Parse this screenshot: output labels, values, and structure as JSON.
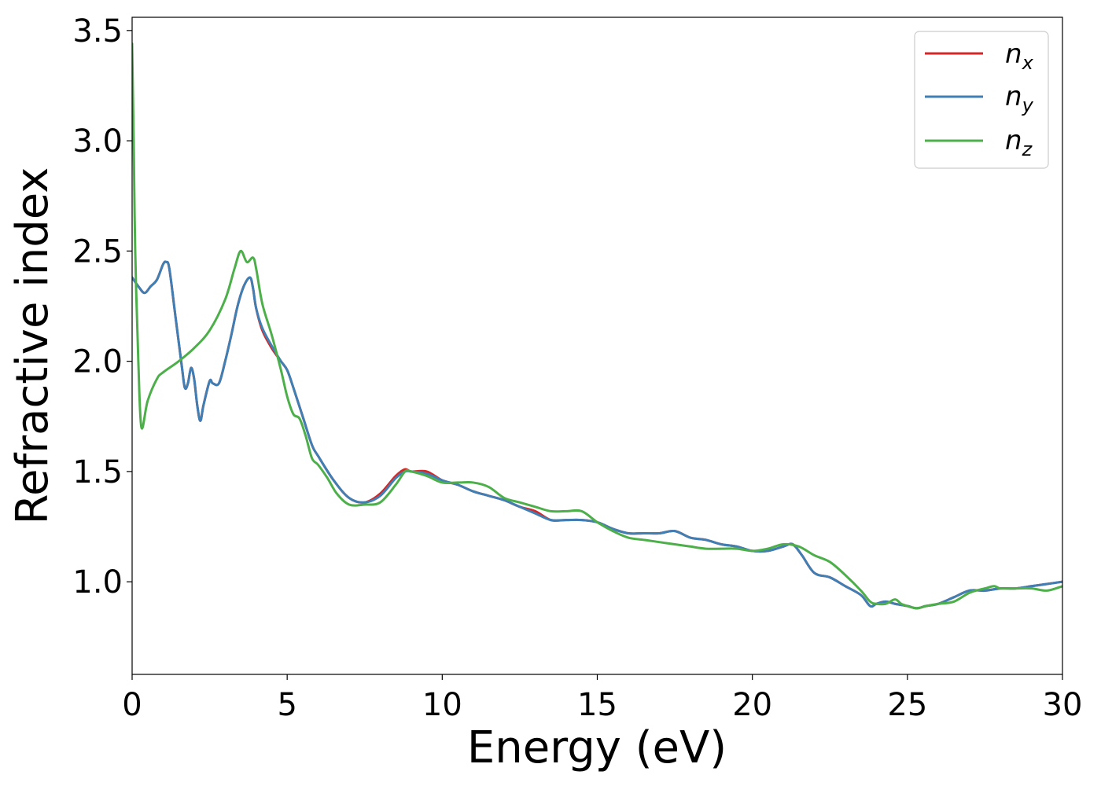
{
  "chart_data": {
    "type": "line",
    "title": "",
    "xlabel": "Energy (eV)",
    "ylabel": "Refractive index",
    "xlim": [
      0,
      30
    ],
    "ylim": [
      0.58,
      3.56
    ],
    "xticks": [
      0,
      5,
      10,
      15,
      20,
      25,
      30
    ],
    "xtick_labels": [
      "0",
      "5",
      "10",
      "15",
      "20",
      "25",
      "30"
    ],
    "yticks": [
      1.0,
      1.5,
      2.0,
      2.5,
      3.0,
      3.5
    ],
    "ytick_labels": [
      "1.0",
      "1.5",
      "2.0",
      "2.5",
      "3.0",
      "3.5"
    ],
    "grid": false,
    "legend_position": "top-right",
    "series": [
      {
        "name": "n_x",
        "label_main": "n",
        "label_sub": "x",
        "color": "#d62728",
        "x": [
          0,
          0.2,
          0.4,
          0.6,
          0.8,
          1.0,
          1.1,
          1.2,
          1.4,
          1.6,
          1.7,
          1.8,
          1.9,
          2.0,
          2.1,
          2.2,
          2.3,
          2.5,
          2.6,
          2.8,
          3.0,
          3.2,
          3.4,
          3.6,
          3.8,
          3.9,
          4.0,
          4.2,
          4.5,
          4.8,
          5.0,
          5.2,
          5.5,
          5.8,
          6.0,
          6.5,
          7.0,
          7.5,
          8.0,
          8.5,
          8.8,
          9.0,
          9.5,
          10.0,
          10.5,
          11.0,
          11.5,
          12.0,
          12.5,
          13.0,
          13.5,
          14.0,
          14.5,
          15.0,
          15.5,
          16.0,
          16.5,
          17.0,
          17.5,
          18.0,
          18.5,
          19.0,
          19.5,
          20.0,
          20.5,
          21.0,
          21.3,
          21.6,
          22.0,
          22.5,
          23.0,
          23.5,
          23.8,
          24.0,
          24.3,
          24.6,
          25.0,
          25.3,
          25.6,
          26.0,
          26.5,
          27.0,
          27.5,
          28.0,
          28.5,
          29.0,
          29.5,
          30.0
        ],
        "y": [
          2.38,
          2.34,
          2.31,
          2.34,
          2.37,
          2.44,
          2.45,
          2.42,
          2.2,
          1.98,
          1.88,
          1.9,
          1.97,
          1.92,
          1.8,
          1.73,
          1.8,
          1.91,
          1.9,
          1.9,
          2.0,
          2.12,
          2.25,
          2.34,
          2.38,
          2.33,
          2.24,
          2.14,
          2.06,
          2.0,
          1.96,
          1.88,
          1.75,
          1.62,
          1.57,
          1.46,
          1.38,
          1.36,
          1.4,
          1.48,
          1.51,
          1.5,
          1.5,
          1.46,
          1.44,
          1.41,
          1.39,
          1.37,
          1.34,
          1.32,
          1.28,
          1.28,
          1.28,
          1.27,
          1.24,
          1.22,
          1.22,
          1.22,
          1.23,
          1.2,
          1.19,
          1.17,
          1.16,
          1.14,
          1.14,
          1.16,
          1.17,
          1.12,
          1.04,
          1.02,
          0.98,
          0.94,
          0.89,
          0.9,
          0.91,
          0.9,
          0.89,
          0.88,
          0.89,
          0.9,
          0.93,
          0.96,
          0.96,
          0.97,
          0.97,
          0.98,
          0.99,
          1.0
        ]
      },
      {
        "name": "n_y",
        "label_main": "n",
        "label_sub": "y",
        "color": "#3f7fb4",
        "x": [
          0,
          0.2,
          0.4,
          0.6,
          0.8,
          1.0,
          1.1,
          1.2,
          1.4,
          1.6,
          1.7,
          1.8,
          1.9,
          2.0,
          2.1,
          2.2,
          2.3,
          2.5,
          2.6,
          2.8,
          3.0,
          3.2,
          3.4,
          3.6,
          3.8,
          3.9,
          4.0,
          4.2,
          4.5,
          4.8,
          5.0,
          5.2,
          5.5,
          5.8,
          6.0,
          6.5,
          7.0,
          7.5,
          8.0,
          8.5,
          8.8,
          9.0,
          9.5,
          10.0,
          10.5,
          11.0,
          11.5,
          12.0,
          12.5,
          13.0,
          13.5,
          14.0,
          14.5,
          15.0,
          15.5,
          16.0,
          16.5,
          17.0,
          17.5,
          18.0,
          18.5,
          19.0,
          19.5,
          20.0,
          20.5,
          21.0,
          21.3,
          21.6,
          22.0,
          22.5,
          23.0,
          23.5,
          23.8,
          24.0,
          24.3,
          24.6,
          25.0,
          25.3,
          25.6,
          26.0,
          26.5,
          27.0,
          27.5,
          28.0,
          28.5,
          29.0,
          29.5,
          30.0
        ],
        "y": [
          2.38,
          2.34,
          2.31,
          2.34,
          2.37,
          2.44,
          2.45,
          2.42,
          2.2,
          1.98,
          1.88,
          1.9,
          1.97,
          1.92,
          1.8,
          1.73,
          1.8,
          1.91,
          1.9,
          1.9,
          2.0,
          2.12,
          2.25,
          2.34,
          2.38,
          2.33,
          2.24,
          2.15,
          2.07,
          2.0,
          1.96,
          1.88,
          1.75,
          1.62,
          1.57,
          1.46,
          1.38,
          1.36,
          1.39,
          1.47,
          1.5,
          1.5,
          1.49,
          1.46,
          1.44,
          1.41,
          1.39,
          1.37,
          1.34,
          1.31,
          1.28,
          1.28,
          1.28,
          1.27,
          1.24,
          1.22,
          1.22,
          1.22,
          1.23,
          1.2,
          1.19,
          1.17,
          1.16,
          1.14,
          1.14,
          1.16,
          1.17,
          1.12,
          1.04,
          1.02,
          0.98,
          0.94,
          0.89,
          0.9,
          0.91,
          0.9,
          0.89,
          0.88,
          0.89,
          0.9,
          0.93,
          0.96,
          0.96,
          0.97,
          0.97,
          0.98,
          0.99,
          1.0
        ]
      },
      {
        "name": "n_z",
        "label_main": "n",
        "label_sub": "z",
        "color": "#4daf4a",
        "x": [
          0,
          0.05,
          0.1,
          0.2,
          0.3,
          0.5,
          0.8,
          1.0,
          1.5,
          2.0,
          2.5,
          3.0,
          3.3,
          3.5,
          3.7,
          3.9,
          4.0,
          4.2,
          4.5,
          4.8,
          5.0,
          5.2,
          5.4,
          5.6,
          5.8,
          6.0,
          6.3,
          6.6,
          7.0,
          7.5,
          8.0,
          8.5,
          8.8,
          9.0,
          9.5,
          10.0,
          10.5,
          11.0,
          11.5,
          12.0,
          12.5,
          13.0,
          13.5,
          14.0,
          14.5,
          15.0,
          15.5,
          16.0,
          16.5,
          17.0,
          17.5,
          18.0,
          18.5,
          19.0,
          19.5,
          20.0,
          20.5,
          21.0,
          21.5,
          22.0,
          22.5,
          23.0,
          23.5,
          23.8,
          24.0,
          24.3,
          24.6,
          24.8,
          25.0,
          25.3,
          25.6,
          26.0,
          26.5,
          27.0,
          27.5,
          27.8,
          28.0,
          28.5,
          29.0,
          29.5,
          30.0
        ],
        "y": [
          3.44,
          3.0,
          2.5,
          2.0,
          1.7,
          1.82,
          1.92,
          1.95,
          2.0,
          2.06,
          2.14,
          2.28,
          2.42,
          2.5,
          2.45,
          2.47,
          2.42,
          2.26,
          2.12,
          1.96,
          1.84,
          1.76,
          1.74,
          1.66,
          1.56,
          1.53,
          1.47,
          1.4,
          1.35,
          1.35,
          1.36,
          1.44,
          1.5,
          1.5,
          1.48,
          1.45,
          1.45,
          1.45,
          1.43,
          1.38,
          1.36,
          1.34,
          1.32,
          1.32,
          1.32,
          1.27,
          1.23,
          1.2,
          1.19,
          1.18,
          1.17,
          1.16,
          1.15,
          1.15,
          1.15,
          1.14,
          1.15,
          1.17,
          1.16,
          1.12,
          1.09,
          1.03,
          0.96,
          0.91,
          0.9,
          0.9,
          0.92,
          0.9,
          0.89,
          0.88,
          0.89,
          0.9,
          0.91,
          0.95,
          0.97,
          0.98,
          0.97,
          0.97,
          0.97,
          0.96,
          0.98
        ]
      }
    ]
  }
}
